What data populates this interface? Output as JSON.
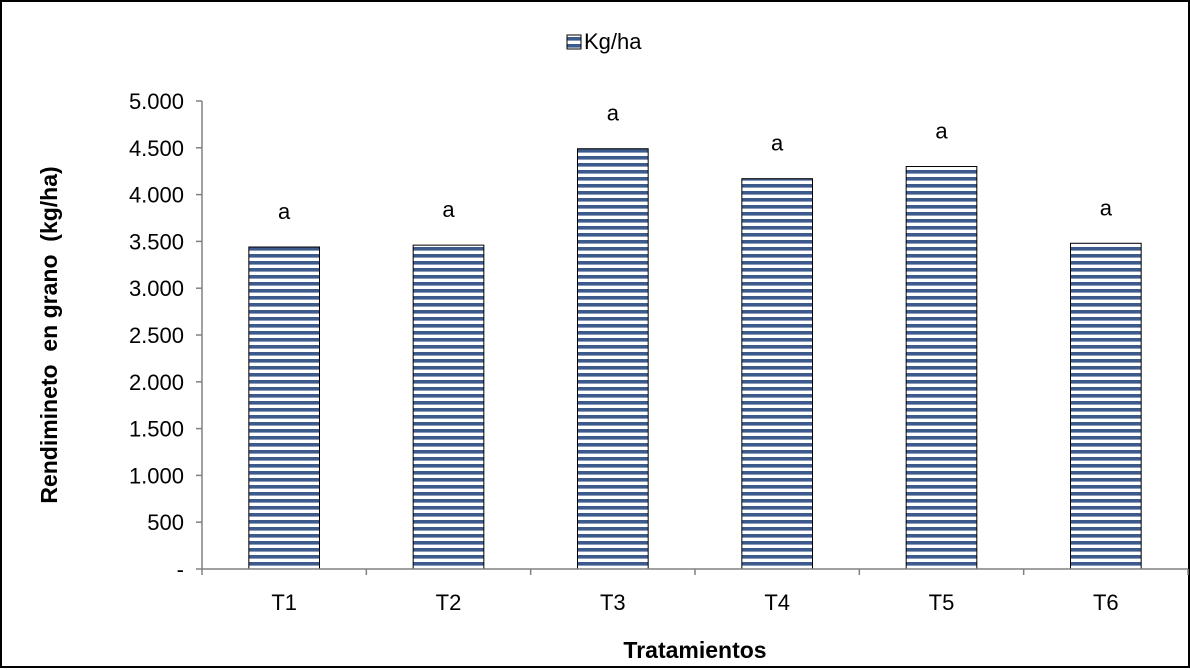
{
  "chart_data": {
    "type": "bar",
    "categories": [
      "T1",
      "T2",
      "T3",
      "T4",
      "T5",
      "T6"
    ],
    "series": [
      {
        "name": "Kg/ha",
        "values": [
          3440,
          3460,
          4490,
          4170,
          4300,
          3480
        ]
      }
    ],
    "annotations": [
      "a",
      "a",
      "a",
      "a",
      "a",
      "a"
    ],
    "title": "",
    "xlabel": "Tratamientos",
    "ylabel": "Rendimineto  en grano  (kg/ha)",
    "ylim": [
      0,
      5000
    ],
    "yticks": [
      0,
      500,
      1000,
      1500,
      2000,
      2500,
      3000,
      3500,
      4000,
      4500,
      5000
    ],
    "ytick_labels": [
      "-",
      "500",
      "1.000",
      "1.500",
      "2.000",
      "2.500",
      "3.000",
      "3.500",
      "4.000",
      "4.500",
      "5.000"
    ],
    "legend_position": "top-center",
    "grid": false,
    "bar_fill": "#3d5a8c",
    "bar_stripe": "#ffffff",
    "bar_pattern": "horizontal-stripes"
  }
}
